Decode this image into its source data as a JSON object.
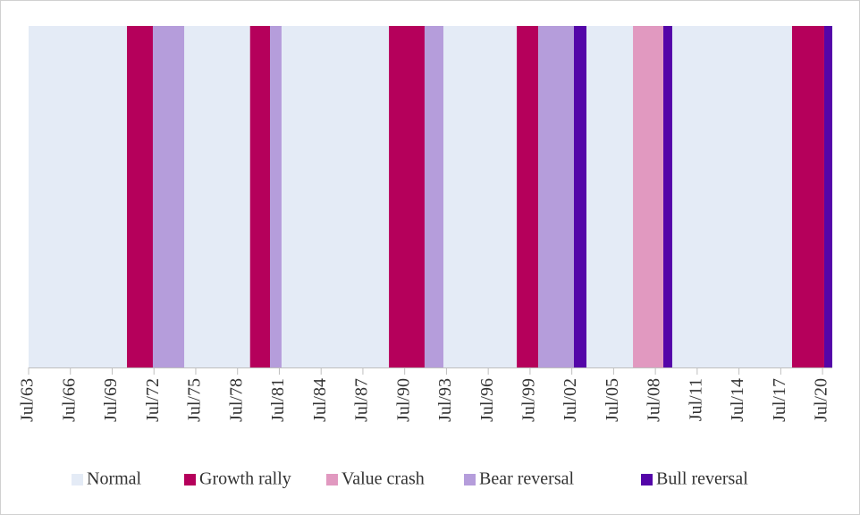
{
  "chart_data": {
    "type": "regime",
    "xlim": [
      1963.5,
      2021.2
    ],
    "xticks": [
      {
        "value": 1963.5,
        "label": "Jul/63"
      },
      {
        "value": 1966.5,
        "label": "Jul/66"
      },
      {
        "value": 1969.5,
        "label": "Jul/69"
      },
      {
        "value": 1972.5,
        "label": "Jul/72"
      },
      {
        "value": 1975.5,
        "label": "Jul/75"
      },
      {
        "value": 1978.5,
        "label": "Jul/78"
      },
      {
        "value": 1981.5,
        "label": "Jul/81"
      },
      {
        "value": 1984.5,
        "label": "Jul/84"
      },
      {
        "value": 1987.5,
        "label": "Jul/87"
      },
      {
        "value": 1990.5,
        "label": "Jul/90"
      },
      {
        "value": 1993.5,
        "label": "Jul/93"
      },
      {
        "value": 1996.5,
        "label": "Jul/96"
      },
      {
        "value": 1999.5,
        "label": "Jul/99"
      },
      {
        "value": 2002.5,
        "label": "Jul/02"
      },
      {
        "value": 2005.5,
        "label": "Jul/05"
      },
      {
        "value": 2008.5,
        "label": "Jul/08"
      },
      {
        "value": 2011.5,
        "label": "Jul/11"
      },
      {
        "value": 2014.5,
        "label": "Jul/14"
      },
      {
        "value": 2017.5,
        "label": "Jul/17"
      },
      {
        "value": 2020.5,
        "label": "Jul/20"
      }
    ],
    "series": [
      {
        "name": "Normal",
        "color": "#e4ebf6",
        "periods": [
          [
            1963.5,
            1970.56
          ],
          [
            1974.67,
            1979.4
          ],
          [
            1981.66,
            1989.37
          ],
          [
            1993.28,
            1998.55
          ],
          [
            2003.55,
            2006.89
          ],
          [
            2009.71,
            2018.31
          ]
        ]
      },
      {
        "name": "Growth rally",
        "color": "#b5005b",
        "periods": [
          [
            1970.56,
            1972.42
          ],
          [
            1979.4,
            1980.83
          ],
          [
            1989.37,
            1991.93
          ],
          [
            1998.55,
            2000.09
          ],
          [
            2018.31,
            2020.62
          ]
        ]
      },
      {
        "name": "Value crash",
        "color": "#e199c0",
        "periods": [
          [
            2006.89,
            2009.07
          ]
        ]
      },
      {
        "name": "Bear reversal",
        "color": "#b59ddb",
        "periods": [
          [
            1972.42,
            1974.67
          ],
          [
            1980.83,
            1981.66
          ],
          [
            1991.93,
            1993.28
          ],
          [
            2000.09,
            2002.65
          ]
        ]
      },
      {
        "name": "Bull reversal",
        "color": "#5405a8",
        "periods": [
          [
            2002.65,
            2003.55
          ],
          [
            2009.07,
            2009.71
          ],
          [
            2020.62,
            2021.2
          ]
        ]
      }
    ]
  }
}
